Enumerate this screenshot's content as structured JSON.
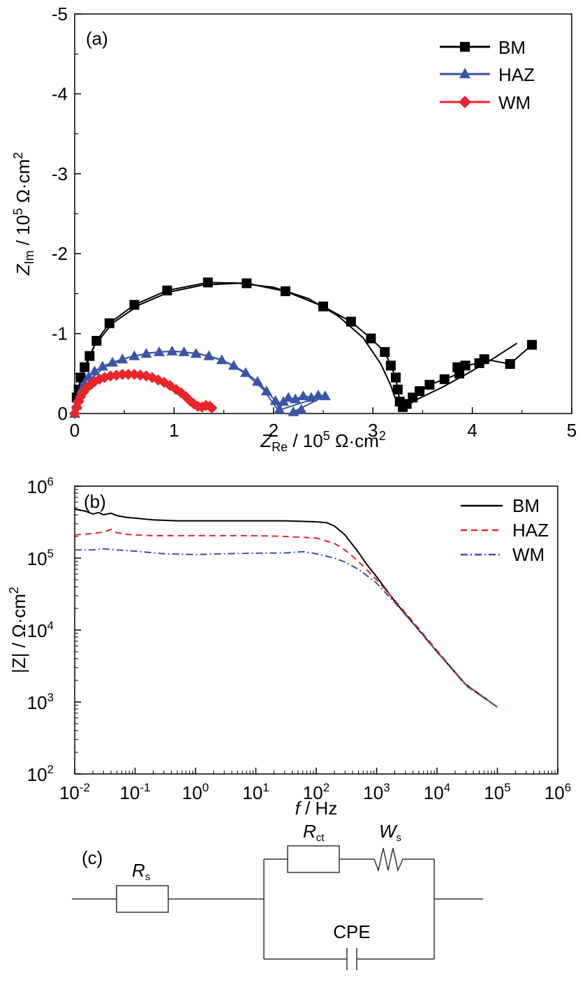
{
  "chart_data": [
    {
      "panel": "(a)",
      "type": "scatter",
      "xlabel": {
        "main": "Z",
        "sub": "Re",
        "unit_pre": " / 10",
        "unit_exp": "5",
        "unit_post": " Ω·cm",
        "unit_exp2": "2"
      },
      "ylabel": {
        "main": "Z",
        "sub": "Im",
        "unit_pre": " / 10",
        "unit_exp": "5",
        "unit_post": " Ω·cm",
        "unit_exp2": "2"
      },
      "xlim": [
        0,
        5
      ],
      "ylim": [
        0,
        -5
      ],
      "x_ticks": [
        "0",
        "1",
        "2",
        "3",
        "4",
        "5"
      ],
      "y_ticks": [
        "0",
        "-1",
        "-2",
        "-3",
        "-4",
        "-5"
      ],
      "legend_position": "top-right",
      "series": [
        {
          "name": "BM",
          "color": "#000000",
          "marker": "square",
          "x": [
            0.02,
            0.04,
            0.06,
            0.1,
            0.15,
            0.22,
            0.35,
            0.6,
            0.93,
            1.34,
            1.73,
            2.12,
            2.5,
            2.78,
            2.98,
            3.12,
            3.18,
            3.23,
            3.25,
            3.27,
            3.3,
            3.34,
            3.4,
            3.47,
            3.57,
            3.72,
            3.87,
            3.85,
            3.93,
            4.07,
            4.12,
            4.38,
            4.6
          ],
          "y": [
            -0.2,
            -0.3,
            -0.45,
            -0.58,
            -0.72,
            -0.91,
            -1.13,
            -1.36,
            -1.54,
            -1.64,
            -1.63,
            -1.53,
            -1.34,
            -1.15,
            -0.94,
            -0.77,
            -0.6,
            -0.45,
            -0.3,
            -0.15,
            -0.08,
            -0.12,
            -0.2,
            -0.28,
            -0.36,
            -0.43,
            -0.5,
            -0.58,
            -0.6,
            -0.63,
            -0.68,
            -0.62,
            -0.86
          ],
          "fit_x": [
            0.0,
            0.02,
            0.08,
            0.2,
            0.38,
            0.65,
            0.95,
            1.3,
            1.65,
            2.0,
            2.35,
            2.65,
            2.9,
            3.08,
            3.18,
            3.24,
            3.28,
            3.45,
            3.7,
            3.95,
            4.2,
            4.45
          ],
          "fit_y": [
            0.0,
            -0.2,
            -0.5,
            -0.85,
            -1.13,
            -1.36,
            -1.52,
            -1.61,
            -1.63,
            -1.58,
            -1.44,
            -1.22,
            -0.95,
            -0.62,
            -0.35,
            -0.14,
            -0.05,
            -0.18,
            -0.33,
            -0.5,
            -0.68,
            -0.88
          ]
        },
        {
          "name": "HAZ",
          "color": "#3a54a6",
          "marker": "triangle",
          "x": [
            0.0,
            0.02,
            0.04,
            0.07,
            0.1,
            0.14,
            0.2,
            0.28,
            0.38,
            0.48,
            0.6,
            0.72,
            0.85,
            0.98,
            1.1,
            1.22,
            1.35,
            1.48,
            1.6,
            1.72,
            1.84,
            1.93,
            2.02,
            2.06,
            2.1,
            2.15,
            2.22,
            2.3,
            2.38,
            2.45,
            2.52,
            2.2,
            2.28
          ],
          "y": [
            0.0,
            -0.1,
            -0.2,
            -0.3,
            -0.38,
            -0.46,
            -0.53,
            -0.59,
            -0.64,
            -0.68,
            -0.72,
            -0.75,
            -0.77,
            -0.78,
            -0.77,
            -0.75,
            -0.72,
            -0.67,
            -0.6,
            -0.51,
            -0.4,
            -0.28,
            -0.16,
            -0.05,
            -0.15,
            -0.2,
            -0.18,
            -0.22,
            -0.2,
            -0.23,
            -0.22,
            -0.02,
            -0.05
          ],
          "fit_x": [
            0.0,
            0.05,
            0.15,
            0.3,
            0.5,
            0.75,
            1.0,
            1.25,
            1.5,
            1.72,
            1.9,
            2.0,
            2.05,
            2.15,
            2.3,
            2.5
          ],
          "fit_y": [
            0.0,
            -0.22,
            -0.42,
            -0.58,
            -0.69,
            -0.76,
            -0.78,
            -0.75,
            -0.66,
            -0.5,
            -0.3,
            -0.12,
            -0.04,
            -0.08,
            -0.14,
            -0.22
          ]
        },
        {
          "name": "WM",
          "color": "#e8262a",
          "marker": "diamond",
          "x": [
            0.0,
            0.02,
            0.04,
            0.06,
            0.09,
            0.12,
            0.16,
            0.2,
            0.25,
            0.3,
            0.36,
            0.42,
            0.48,
            0.54,
            0.6,
            0.66,
            0.72,
            0.78,
            0.84,
            0.9,
            0.96,
            1.02,
            1.07,
            1.12,
            1.16,
            1.2,
            1.24,
            1.28,
            1.32,
            1.36,
            1.38
          ],
          "y": [
            0.0,
            -0.08,
            -0.15,
            -0.21,
            -0.27,
            -0.32,
            -0.36,
            -0.4,
            -0.43,
            -0.45,
            -0.47,
            -0.48,
            -0.49,
            -0.49,
            -0.49,
            -0.48,
            -0.47,
            -0.45,
            -0.42,
            -0.39,
            -0.35,
            -0.3,
            -0.26,
            -0.21,
            -0.16,
            -0.12,
            -0.09,
            -0.08,
            -0.1,
            -0.09,
            -0.07
          ],
          "fit_x": [
            0.0,
            0.05,
            0.15,
            0.3,
            0.45,
            0.6,
            0.75,
            0.9,
            1.05,
            1.18,
            1.26,
            1.32
          ],
          "fit_y": [
            0.0,
            -0.18,
            -0.34,
            -0.44,
            -0.48,
            -0.49,
            -0.46,
            -0.39,
            -0.28,
            -0.16,
            -0.1,
            -0.1
          ],
          "fit_color": "#f2c12e"
        }
      ]
    },
    {
      "panel": "(b)",
      "type": "line",
      "xlabel": {
        "main": "f",
        "unit": " / Hz"
      },
      "ylabel": {
        "main": "|Z| / Ω·cm",
        "exp": "2"
      },
      "xscale": "log",
      "yscale": "log",
      "xlim": [
        0.01,
        1000000
      ],
      "ylim": [
        100,
        1000000
      ],
      "x_ticks": [
        {
          "base": "10",
          "exp": "-2"
        },
        {
          "base": "10",
          "exp": "-1"
        },
        {
          "base": "10",
          "exp": "0"
        },
        {
          "base": "10",
          "exp": "1"
        },
        {
          "base": "10",
          "exp": "2"
        },
        {
          "base": "10",
          "exp": "3"
        },
        {
          "base": "10",
          "exp": "4"
        },
        {
          "base": "10",
          "exp": "5"
        },
        {
          "base": "10",
          "exp": "6"
        }
      ],
      "y_ticks": [
        {
          "base": "10",
          "exp": "2"
        },
        {
          "base": "10",
          "exp": "3"
        },
        {
          "base": "10",
          "exp": "4"
        },
        {
          "base": "10",
          "exp": "5"
        },
        {
          "base": "10",
          "exp": "6"
        }
      ],
      "legend_position": "top-right",
      "series": [
        {
          "name": "BM",
          "color": "#000000",
          "dash": "solid",
          "x": [
            0.01,
            0.015,
            0.02,
            0.025,
            0.03,
            0.04,
            0.05,
            0.07,
            0.1,
            0.2,
            0.5,
            1,
            3,
            10,
            30,
            100,
            150,
            200,
            300,
            500,
            700,
            1000,
            2000,
            5000,
            10000,
            30000,
            100000
          ],
          "y": [
            480000,
            450000,
            410000,
            430000,
            400000,
            420000,
            390000,
            370000,
            360000,
            340000,
            330000,
            330000,
            330000,
            330000,
            330000,
            320000,
            310000,
            280000,
            210000,
            120000,
            80000,
            55000,
            25000,
            10000,
            5000,
            1750,
            850
          ]
        },
        {
          "name": "HAZ",
          "color": "#e8262a",
          "dash": "dashed",
          "x": [
            0.01,
            0.02,
            0.03,
            0.04,
            0.05,
            0.07,
            0.1,
            0.2,
            0.5,
            1,
            3,
            10,
            30,
            100,
            200,
            300,
            500,
            1000,
            2000,
            5000,
            10000,
            30000,
            100000
          ],
          "y": [
            210000,
            220000,
            230000,
            250000,
            225000,
            215000,
            210000,
            205000,
            205000,
            205000,
            205000,
            205000,
            200000,
            190000,
            160000,
            130000,
            90000,
            50000,
            26000,
            10500,
            5200,
            1750,
            850
          ]
        },
        {
          "name": "WM",
          "color": "#3a54a6",
          "dash": "dashdot",
          "x": [
            0.01,
            0.02,
            0.03,
            0.05,
            0.1,
            0.3,
            1,
            3,
            10,
            30,
            60,
            100,
            200,
            300,
            500,
            1000,
            2000,
            5000,
            10000,
            30000,
            100000
          ],
          "y": [
            130000,
            130000,
            135000,
            130000,
            125000,
            115000,
            112000,
            115000,
            117000,
            118000,
            123000,
            115000,
            100000,
            88000,
            70000,
            45000,
            24000,
            10000,
            5000,
            1700,
            850
          ]
        }
      ]
    }
  ],
  "circuit": {
    "label": "(c)",
    "rs_main": "R",
    "rs_sub": "s",
    "rct_main": "R",
    "rct_sub": "ct",
    "ws_main": "W",
    "ws_sub": "s",
    "cpe": "CPE"
  }
}
